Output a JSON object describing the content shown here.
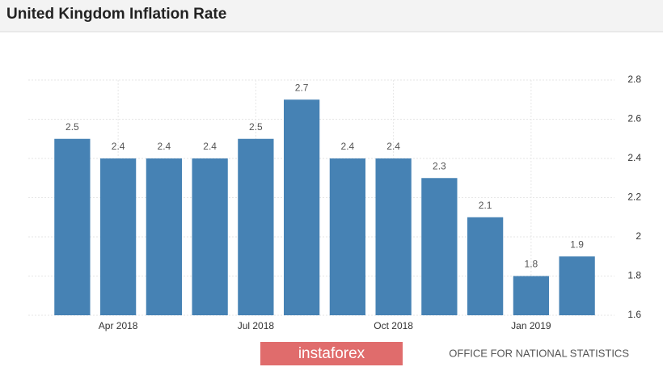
{
  "chart_data": {
    "type": "bar",
    "title": "United Kingdom Inflation Rate",
    "categories": [
      null,
      "Apr 2018",
      null,
      null,
      "Jul 2018",
      null,
      null,
      "Oct 2018",
      null,
      null,
      "Jan 2019",
      null
    ],
    "values": [
      2.5,
      2.4,
      2.4,
      2.4,
      2.5,
      2.7,
      2.4,
      2.4,
      2.3,
      2.1,
      1.8,
      1.9
    ],
    "color": "#4682b4",
    "ylim": [
      1.6,
      2.8
    ],
    "yticks": [
      1.6,
      1.8,
      2,
      2.2,
      2.4,
      2.6,
      2.8
    ],
    "y_axis_side": "right",
    "grid": true,
    "source": "OFFICE FOR NATIONAL STATISTICS",
    "watermark": "instaforex"
  }
}
